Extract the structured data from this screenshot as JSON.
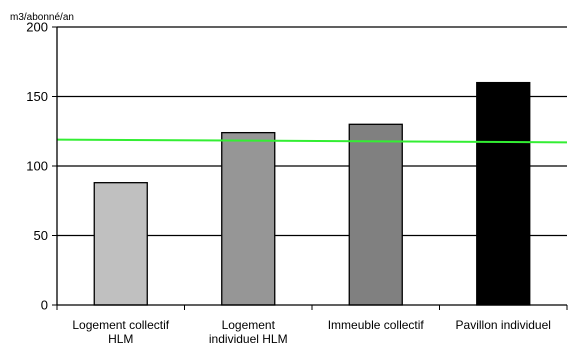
{
  "chart_data": {
    "type": "bar",
    "ylabel": "m3/abonné/an",
    "ylim": [
      0,
      200
    ],
    "yticks": [
      0,
      50,
      100,
      150,
      200
    ],
    "grid": true,
    "categories": [
      [
        "Logement collectif",
        "HLM"
      ],
      [
        "Logement",
        "individuel HLM"
      ],
      [
        "Immeuble collectif"
      ],
      [
        "Pavillon individuel"
      ]
    ],
    "values": [
      88,
      124,
      130,
      160
    ],
    "bar_colors": [
      "#c0c0c0",
      "#969696",
      "#808080",
      "#000000"
    ],
    "reference_line": {
      "start": 119,
      "end": 117,
      "color": "#33ee33"
    }
  }
}
